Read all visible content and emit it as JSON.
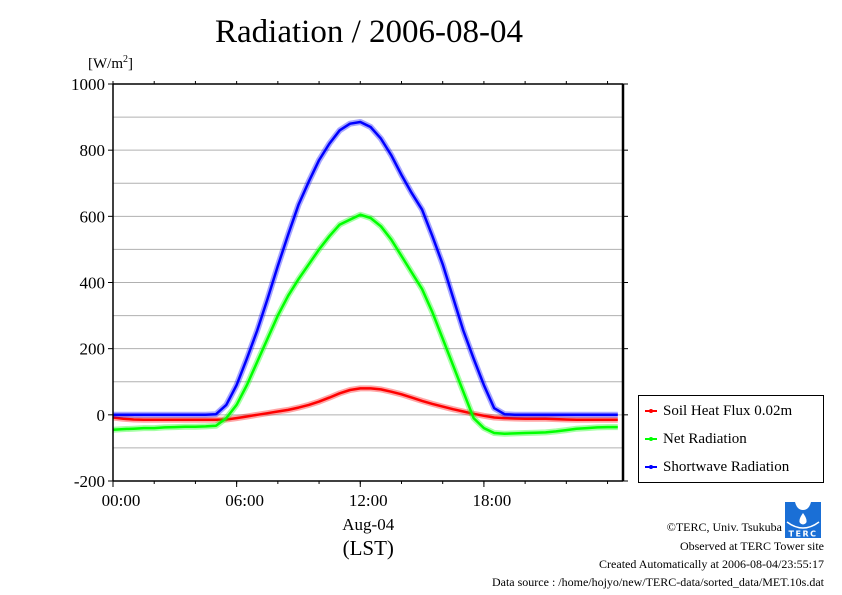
{
  "chart_data": {
    "type": "line",
    "title": "Radiation / 2006-08-04",
    "ylabel": "[W/m2]",
    "ylabel_base": "[W/m",
    "ylabel_sup": "2",
    "ylabel_close": "]",
    "xlabel_date": "Aug-04",
    "xlabel_tz": "(LST)",
    "ylim": [
      -200,
      1000
    ],
    "xlim": [
      0,
      24.75
    ],
    "yticks": [
      -200,
      0,
      200,
      400,
      600,
      800,
      1000
    ],
    "ytick_labels": [
      "-200",
      "0",
      "200",
      "400",
      "600",
      "800",
      "1000"
    ],
    "xticks": [
      0,
      6,
      12,
      18
    ],
    "xtick_labels": [
      "00:00",
      "06:00",
      "12:00",
      "18:00"
    ],
    "minor_xtick_step_hours": 1,
    "grid": true,
    "legend_position": "right",
    "x": [
      0,
      0.5,
      1,
      1.5,
      2,
      2.5,
      3,
      3.5,
      4,
      4.5,
      5,
      5.5,
      6,
      6.5,
      7,
      7.5,
      8,
      8.5,
      9,
      9.5,
      10,
      10.5,
      11,
      11.5,
      12,
      12.5,
      13,
      13.5,
      14,
      14.5,
      15,
      15.5,
      16,
      16.5,
      17,
      17.5,
      18,
      18.5,
      19,
      19.5,
      20,
      20.5,
      21,
      21.5,
      22,
      22.5,
      23,
      23.5,
      24,
      24.5
    ],
    "series": [
      {
        "name": "Soil Heat Flux 0.02m",
        "color": "#ff0000",
        "values": [
          -8,
          -12,
          -14,
          -15,
          -15,
          -15,
          -15,
          -15,
          -15,
          -15,
          -15,
          -14,
          -10,
          -5,
          0,
          5,
          10,
          15,
          22,
          30,
          40,
          52,
          65,
          75,
          80,
          80,
          77,
          70,
          62,
          52,
          42,
          33,
          25,
          17,
          10,
          3,
          -3,
          -8,
          -10,
          -11,
          -12,
          -12,
          -12,
          -13,
          -14,
          -15,
          -15,
          -15,
          -15,
          -15
        ]
      },
      {
        "name": "Net Radiation",
        "color": "#00ff00",
        "values": [
          -45,
          -43,
          -42,
          -40,
          -40,
          -38,
          -37,
          -36,
          -36,
          -35,
          -33,
          -10,
          30,
          90,
          160,
          230,
          300,
          360,
          410,
          455,
          500,
          540,
          575,
          590,
          605,
          595,
          570,
          530,
          480,
          430,
          380,
          310,
          230,
          150,
          70,
          -10,
          -40,
          -55,
          -57,
          -56,
          -55,
          -54,
          -53,
          -50,
          -46,
          -42,
          -40,
          -38,
          -37,
          -37
        ]
      },
      {
        "name": "Shortwave Radiation",
        "color": "#0000ff",
        "values": [
          0,
          0,
          0,
          0,
          0,
          0,
          0,
          0,
          0,
          0,
          2,
          30,
          90,
          170,
          255,
          350,
          450,
          545,
          635,
          705,
          770,
          820,
          860,
          880,
          885,
          870,
          835,
          785,
          725,
          670,
          620,
          540,
          455,
          355,
          255,
          170,
          90,
          20,
          2,
          0,
          0,
          0,
          0,
          0,
          0,
          0,
          0,
          0,
          0,
          0
        ]
      }
    ]
  },
  "footer": {
    "copyright": "©TERC, Univ. Tsukuba",
    "observed": "Observed at TERC Tower site",
    "created": "Created Automatically at 2006-08-04/23:55:17",
    "source": "Data source : /home/hojyo/new/TERC-data/sorted_data/MET.10s.dat",
    "logo_text": "TERC",
    "logo_color": "#1a6fd6"
  }
}
